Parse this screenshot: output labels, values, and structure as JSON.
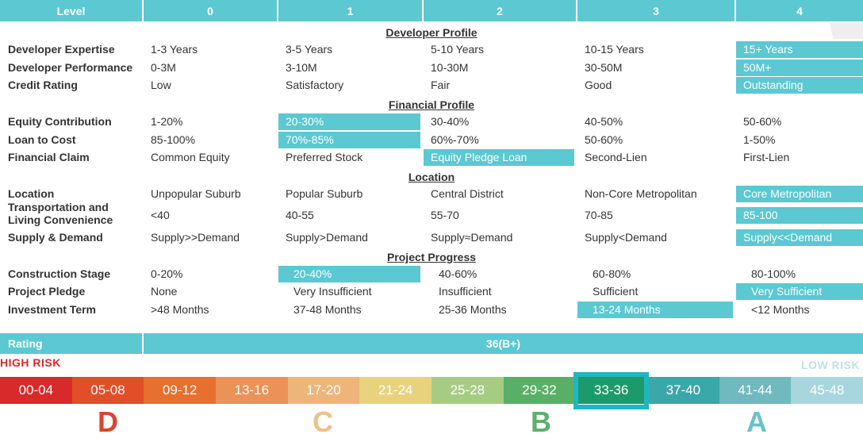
{
  "header": {
    "level_label": "Level",
    "levels": [
      "0",
      "1",
      "2",
      "3",
      "4"
    ]
  },
  "sections": [
    {
      "title": "Developer Profile",
      "rows": [
        {
          "label": "Developer Expertise",
          "cells": [
            "1-3 Years",
            "3-5 Years",
            "5-10 Years",
            "10-15 Years",
            "15+ Years"
          ],
          "selected": 4
        },
        {
          "label": "Developer Performance",
          "cells": [
            "0-3M",
            "3-10M",
            "10-30M",
            "30-50M",
            "50M+"
          ],
          "selected": 4
        },
        {
          "label": "Credit Rating",
          "cells": [
            "Low",
            "Satisfactory",
            "Fair",
            "Good",
            "Outstanding"
          ],
          "selected": 4
        }
      ]
    },
    {
      "title": "Financial Profile",
      "rows": [
        {
          "label": "Equity Contribution",
          "cells": [
            "1-20%",
            "20-30%",
            "30-40%",
            "40-50%",
            "50-60%"
          ],
          "selected": 1
        },
        {
          "label": "Loan to Cost",
          "cells": [
            "85-100%",
            "70%-85%",
            "60%-70%",
            "50-60%",
            "1-50%"
          ],
          "selected": 1
        },
        {
          "label": "Financial Claim",
          "cells": [
            "Common Equity",
            "Preferred Stock",
            "Equity Pledge Loan",
            "Second-Lien",
            "First-Lien"
          ],
          "selected": 2
        }
      ]
    },
    {
      "title": "Location",
      "rows": [
        {
          "label": "Location",
          "cells": [
            "Unpopular Suburb",
            "Popular Suburb",
            "Central District",
            "Non-Core Metropolitan",
            "Core Metropolitan"
          ],
          "selected": 4
        },
        {
          "label": "Transportation and Living Convenience",
          "cells": [
            "<40",
            "40-55",
            "55-70",
            "70-85",
            "85-100"
          ],
          "selected": 4
        },
        {
          "label": "Supply & Demand",
          "cells": [
            "Supply>>Demand",
            "Supply>Demand",
            "Supply≈Demand",
            "Supply<Demand",
            "Supply<<Demand"
          ],
          "selected": 4
        }
      ]
    },
    {
      "title": "Project Progress",
      "rows": [
        {
          "label": "Construction Stage",
          "cells": [
            "0-20%",
            "20-40%",
            "40-60%",
            "60-80%",
            "80-100%"
          ],
          "selected": 1
        },
        {
          "label": "Project Pledge",
          "cells": [
            "None",
            "Very Insufficient",
            "Insufficient",
            "Sufficient",
            "Very Sufficient"
          ],
          "selected": 4
        },
        {
          "label": "Investment Term",
          "cells": [
            ">48 Months",
            "37-48 Months",
            "25-36 Months",
            "13-24 Months",
            "<12 Months"
          ],
          "selected": 3
        }
      ]
    }
  ],
  "rating": {
    "label": "Rating",
    "value": "36(B+)"
  },
  "risk": {
    "high": "HIGH RISK",
    "low": "LOW RISK"
  },
  "scale": [
    {
      "range": "00-04",
      "color": "#d82a2a"
    },
    {
      "range": "05-08",
      "color": "#e04f28"
    },
    {
      "range": "09-12",
      "color": "#e57030"
    },
    {
      "range": "13-16",
      "color": "#ea9257"
    },
    {
      "range": "17-20",
      "color": "#eeb57a"
    },
    {
      "range": "21-24",
      "color": "#e8d27e"
    },
    {
      "range": "25-28",
      "color": "#a6cc83"
    },
    {
      "range": "29-32",
      "color": "#5aaf68"
    },
    {
      "range": "33-36",
      "color": "#1d9a6b"
    },
    {
      "range": "37-40",
      "color": "#3aa7a8"
    },
    {
      "range": "41-44",
      "color": "#6fb9bf"
    },
    {
      "range": "45-48",
      "color": "#a8d6de"
    }
  ],
  "selected_scale_index": 8,
  "grades": [
    {
      "letter": "D",
      "color": "#d9442f"
    },
    {
      "letter": "C",
      "color": "#eec08a"
    },
    {
      "letter": "B",
      "color": "#5cb06c"
    },
    {
      "letter": "A",
      "color": "#6cc2c6"
    }
  ],
  "colors": {
    "accent": "#5bc8d2",
    "selected_border": "#1fb7c0"
  }
}
